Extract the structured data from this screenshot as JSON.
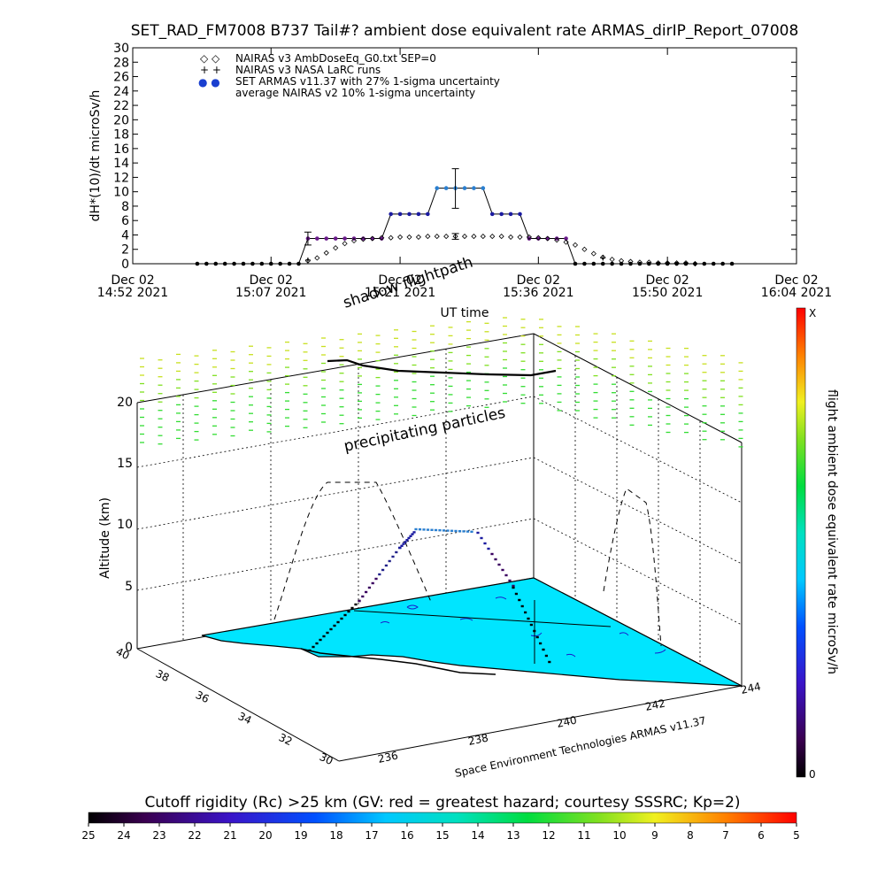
{
  "header": {
    "title": "SET_RAD_FM7008  B737 Tail#? ambient dose equivalent rate ARMAS_dirIP_Report_07008"
  },
  "top_plot": {
    "ylabel": "dH*(10)/dt microSv/h",
    "xlabel": "UT time",
    "legend": [
      {
        "symbol": "◇ ◇",
        "label": "NAIRAS v3 AmbDoseEq_G0.txt SEP=0"
      },
      {
        "symbol": "+ +",
        "label": "NAIRAS v3 NASA LaRC runs"
      },
      {
        "symbol": "● ●",
        "label": "SET ARMAS v11.37 with 27% 1-sigma uncertainty"
      },
      {
        "symbol": "",
        "label": "average NAIRAS v2 10% 1-sigma uncertainty"
      }
    ]
  },
  "lower_plot": {
    "zlabel": "Altitude (km)",
    "shadow_label": "shadow flightpath",
    "precip_label": "precipitating particles",
    "credit": "Space Environment Technologies ARMAS v11.37",
    "z_ticks": [
      "0",
      "5",
      "10",
      "15",
      "20"
    ],
    "lat_ticks": [
      "40",
      "38",
      "36",
      "34",
      "32",
      "30"
    ],
    "lon_ticks": [
      "236",
      "238",
      "240",
      "242",
      "244"
    ]
  },
  "right_colorbar": {
    "label": "flight ambient dose equivalent rate microSv/h",
    "top": "X",
    "bottom": "0"
  },
  "bottom_colorbar": {
    "title": "Cutoff rigidity (Rc) >25 km (GV: red = greatest hazard; courtesy SSSRC; Kp=2)",
    "ticks": [
      "25",
      "24",
      "23",
      "22",
      "21",
      "20",
      "19",
      "18",
      "17",
      "16",
      "15",
      "14",
      "13",
      "12",
      "11",
      "10",
      "9",
      "8",
      "7",
      "6",
      "5"
    ]
  },
  "colors": {
    "armas_blue": "#2a7fd0",
    "armas_dark": "#1a1aa0",
    "armas_purple": "#6a1a8a",
    "cyan_fill": "#00e5ff",
    "precip_green": "#44dd22"
  },
  "chart_data": [
    {
      "type": "scatter",
      "title": "SET_RAD_FM7008  B737 Tail#? ambient dose equivalent rate ARMAS_dirIP_Report_07008",
      "xlabel": "UT time",
      "ylabel": "dH*(10)/dt microSv/h",
      "ylim": [
        0,
        30
      ],
      "y_ticks": [
        "0",
        "2",
        "4",
        "6",
        "8",
        "10",
        "12",
        "14",
        "16",
        "18",
        "20",
        "22",
        "24",
        "26",
        "28",
        "30"
      ],
      "x_tick_labels": [
        [
          "Dec 02",
          "14:52 2021"
        ],
        [
          "Dec 02",
          "15:07 2021"
        ],
        [
          "Dec 02",
          "15:21 2021"
        ],
        [
          "Dec 02",
          "15:36 2021"
        ],
        [
          "Dec 02",
          "15:50 2021"
        ],
        [
          "Dec 02",
          "16:04 2021"
        ]
      ],
      "x_tick_minutes": [
        0,
        15,
        29,
        44,
        58,
        72
      ],
      "xlim_minutes": [
        0,
        72
      ],
      "series": [
        {
          "name": "SET ARMAS v11.37 with 27% 1-sigma uncertainty",
          "x_minutes": [
            7,
            8,
            9,
            10,
            11,
            12,
            13,
            14,
            15,
            16,
            17,
            18,
            19,
            20,
            21,
            22,
            23,
            24,
            25,
            26,
            27,
            28,
            29,
            30,
            31,
            32,
            33,
            34,
            35,
            36,
            37,
            38,
            39,
            40,
            41,
            42,
            43,
            44,
            45,
            46,
            47,
            48,
            49,
            50,
            51,
            52,
            53,
            54,
            55,
            56,
            57,
            58,
            59,
            60,
            61,
            62,
            63,
            64,
            65
          ],
          "y": [
            0,
            0,
            0,
            0,
            0,
            0,
            0,
            0,
            0,
            0,
            0,
            0,
            3.5,
            3.5,
            3.5,
            3.5,
            3.5,
            3.5,
            3.5,
            3.5,
            3.5,
            6.9,
            6.9,
            6.9,
            6.9,
            6.9,
            10.5,
            10.5,
            10.5,
            10.5,
            10.5,
            10.5,
            6.9,
            6.9,
            6.9,
            6.9,
            3.5,
            3.5,
            3.5,
            3.5,
            3.5,
            0,
            0,
            0,
            0,
            0,
            0,
            0,
            0,
            0,
            0,
            0,
            0,
            0,
            0,
            0,
            0,
            0,
            0
          ]
        },
        {
          "name": "NAIRAS v3 AmbDoseEq_G0.txt SEP=0",
          "x_minutes": [
            19,
            20,
            21,
            22,
            23,
            24,
            25,
            26,
            27,
            28,
            29,
            30,
            31,
            32,
            33,
            34,
            35,
            36,
            37,
            38,
            39,
            40,
            41,
            42,
            43,
            44,
            45,
            46,
            47,
            48,
            49,
            50,
            51,
            52,
            53,
            54,
            55,
            56,
            57,
            58,
            59,
            60,
            61
          ],
          "y": [
            0.4,
            0.8,
            1.5,
            2.2,
            2.8,
            3.2,
            3.4,
            3.5,
            3.6,
            3.6,
            3.7,
            3.7,
            3.7,
            3.8,
            3.8,
            3.8,
            3.8,
            3.8,
            3.8,
            3.8,
            3.8,
            3.8,
            3.7,
            3.7,
            3.7,
            3.6,
            3.5,
            3.3,
            3.0,
            2.6,
            2.0,
            1.4,
            0.9,
            0.6,
            0.4,
            0.3,
            0.2,
            0.2,
            0.1,
            0.1,
            0.1,
            0.1,
            0
          ]
        },
        {
          "name": "NAIRAS v3 NASA LaRC runs",
          "x_minutes": [
            19,
            51
          ],
          "y": [
            0.5,
            0.8
          ]
        }
      ],
      "error_bars": [
        {
          "x_minutes": 19,
          "y": 3.5,
          "low": 2.6,
          "high": 4.4
        },
        {
          "x_minutes": 35,
          "y": 10.5,
          "low": 7.7,
          "high": 13.2
        },
        {
          "x_minutes": 35,
          "y": 3.8,
          "low": 3.4,
          "high": 4.2
        }
      ]
    },
    {
      "type": "scatter",
      "title": "",
      "zlabel": "Altitude (km)",
      "z_range": [
        0,
        20
      ],
      "lat_range": [
        30,
        40
      ],
      "lon_range": [
        236,
        244
      ],
      "flight_altitude_km": [
        0,
        3.5,
        7.0,
        10.6,
        10.6,
        10.6,
        7.0,
        3.5,
        0
      ]
    }
  ]
}
